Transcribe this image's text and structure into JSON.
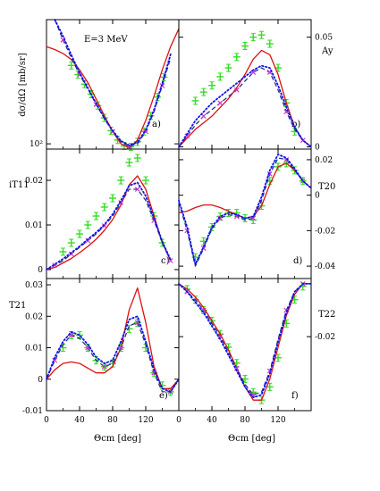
{
  "figure": {
    "energy_label": "E=3 MeV",
    "xlabel_left": "Θcm [deg]",
    "xlabel_right": "Θcm [deg]"
  },
  "colors": {
    "data": "#33dd22",
    "solid": "#dd1111",
    "dashed": "#223388",
    "dotted": "#1111ee",
    "cross": "#cc33cc"
  },
  "chart_data": [
    {
      "id": "a",
      "panel_label": "a)",
      "type": "line",
      "ylabel": "dσ/dΩ [mb/sr]",
      "yscale": "log",
      "ytick_labels": [
        {
          "value": 100,
          "text": "10²"
        }
      ],
      "xlim": [
        0,
        160
      ],
      "ylim": [
        90,
        1200
      ],
      "series": [
        {
          "role": "data",
          "x": [
            30,
            38,
            46,
            54,
            62,
            70,
            78,
            86,
            94,
            102,
            110,
            118,
            126,
            134,
            142
          ],
          "y": [
            480,
            400,
            330,
            270,
            215,
            168,
            130,
            108,
            96,
            94,
            104,
            128,
            175,
            255,
            380
          ]
        },
        {
          "role": "solid",
          "x": [
            0,
            10,
            20,
            30,
            40,
            50,
            60,
            70,
            80,
            90,
            100,
            110,
            120,
            130,
            140,
            150,
            160
          ],
          "y": [
            700,
            660,
            610,
            540,
            440,
            340,
            245,
            175,
            128,
            100,
            92,
            108,
            160,
            260,
            440,
            700,
            1000
          ]
        },
        {
          "role": "dashed",
          "x": [
            10,
            20,
            30,
            40,
            50,
            60,
            70,
            80,
            90,
            100,
            110,
            120,
            130,
            140,
            150
          ],
          "y": [
            1400,
            800,
            560,
            400,
            300,
            220,
            165,
            128,
            104,
            95,
            100,
            128,
            190,
            320,
            560
          ]
        },
        {
          "role": "dotted",
          "x": [
            10,
            20,
            30,
            40,
            50,
            60,
            70,
            80,
            90,
            100,
            110,
            120,
            130,
            140,
            150
          ],
          "y": [
            1600,
            860,
            590,
            415,
            305,
            225,
            168,
            130,
            106,
            97,
            103,
            132,
            198,
            335,
            600
          ]
        }
      ]
    },
    {
      "id": "b",
      "panel_label": "b)",
      "type": "line",
      "ylabel": "Ay",
      "ytick_labels": [
        {
          "value": 0,
          "text": "0"
        },
        {
          "value": 0.05,
          "text": "0.05"
        }
      ],
      "xlim": [
        0,
        160
      ],
      "ylim": [
        -0.001,
        0.058
      ],
      "series": [
        {
          "role": "data",
          "x": [
            20,
            30,
            40,
            50,
            60,
            70,
            80,
            90,
            100,
            110,
            120,
            130,
            140
          ],
          "y": [
            0.021,
            0.025,
            0.028,
            0.032,
            0.036,
            0.041,
            0.046,
            0.05,
            0.051,
            0.047,
            0.036,
            0.02,
            0.007
          ]
        },
        {
          "role": "solid",
          "x": [
            0,
            10,
            20,
            30,
            40,
            50,
            60,
            70,
            80,
            90,
            100,
            110,
            120,
            130,
            140,
            150,
            160
          ],
          "y": [
            0,
            0.004,
            0.008,
            0.011,
            0.014,
            0.018,
            0.022,
            0.027,
            0.033,
            0.04,
            0.044,
            0.042,
            0.033,
            0.02,
            0.009,
            0.003,
            0
          ]
        },
        {
          "role": "dashed",
          "x": [
            0,
            10,
            20,
            30,
            40,
            50,
            60,
            70,
            80,
            90,
            100,
            110,
            120,
            130,
            140,
            150,
            160
          ],
          "y": [
            0,
            0.005,
            0.01,
            0.014,
            0.017,
            0.02,
            0.023,
            0.026,
            0.03,
            0.034,
            0.036,
            0.034,
            0.026,
            0.016,
            0.008,
            0.003,
            0
          ]
        },
        {
          "role": "dotted",
          "x": [
            0,
            10,
            20,
            30,
            40,
            50,
            60,
            70,
            80,
            90,
            100,
            110,
            120,
            130,
            140,
            150,
            160
          ],
          "y": [
            0,
            0.006,
            0.012,
            0.016,
            0.02,
            0.023,
            0.026,
            0.029,
            0.032,
            0.035,
            0.037,
            0.036,
            0.028,
            0.018,
            0.009,
            0.003,
            0
          ]
        }
      ]
    },
    {
      "id": "c",
      "panel_label": "c)",
      "type": "line",
      "ylabel": "iT11",
      "ytick_labels": [
        {
          "value": 0,
          "text": "0"
        },
        {
          "value": 0.01,
          "text": "0.01"
        },
        {
          "value": 0.02,
          "text": "0.02"
        }
      ],
      "xlim": [
        0,
        160
      ],
      "ylim": [
        -0.002,
        0.027
      ],
      "series": [
        {
          "role": "data",
          "x": [
            20,
            30,
            40,
            50,
            60,
            70,
            80,
            90,
            100,
            110,
            120,
            130,
            140
          ],
          "y": [
            0.004,
            0.006,
            0.008,
            0.01,
            0.012,
            0.014,
            0.016,
            0.02,
            0.024,
            0.025,
            0.02,
            0.012,
            0.006
          ]
        },
        {
          "role": "solid",
          "x": [
            0,
            10,
            20,
            30,
            40,
            50,
            60,
            70,
            80,
            90,
            100,
            110,
            120,
            130,
            140,
            150
          ],
          "y": [
            0,
            0.0005,
            0.0015,
            0.0025,
            0.0038,
            0.0052,
            0.0068,
            0.0088,
            0.0112,
            0.0145,
            0.019,
            0.021,
            0.018,
            0.012,
            0.006,
            0.002
          ]
        },
        {
          "role": "dashed",
          "x": [
            0,
            10,
            20,
            30,
            40,
            50,
            60,
            70,
            80,
            90,
            100,
            110,
            120,
            130,
            140,
            150
          ],
          "y": [
            0,
            0.001,
            0.002,
            0.0035,
            0.005,
            0.0065,
            0.008,
            0.0098,
            0.012,
            0.015,
            0.018,
            0.018,
            0.0155,
            0.011,
            0.006,
            0.002
          ]
        },
        {
          "role": "dotted",
          "x": [
            0,
            10,
            20,
            30,
            40,
            50,
            60,
            70,
            80,
            90,
            100,
            110,
            120,
            130,
            140,
            150
          ],
          "y": [
            0,
            0.0012,
            0.0024,
            0.0038,
            0.0052,
            0.0068,
            0.0083,
            0.0101,
            0.0124,
            0.0155,
            0.0188,
            0.0195,
            0.0165,
            0.0115,
            0.0063,
            0.0022
          ]
        }
      ]
    },
    {
      "id": "d",
      "panel_label": "d)",
      "type": "line",
      "ylabel": "T20",
      "ytick_labels": [
        {
          "value": 0.02,
          "text": "0.02"
        },
        {
          "value": 0,
          "text": "0"
        },
        {
          "value": -0.02,
          "text": "-0.02"
        },
        {
          "value": -0.04,
          "text": "-0.04"
        }
      ],
      "xlim": [
        0,
        160
      ],
      "ylim": [
        -0.047,
        0.026
      ],
      "series": [
        {
          "role": "data",
          "x": [
            20,
            30,
            40,
            50,
            60,
            70,
            80,
            90,
            100,
            110,
            120,
            130,
            140,
            150
          ],
          "y": [
            -0.035,
            -0.026,
            -0.018,
            -0.012,
            -0.01,
            -0.01,
            -0.013,
            -0.014,
            -0.006,
            0.008,
            0.016,
            0.018,
            0.014,
            0.008
          ]
        },
        {
          "role": "solid",
          "x": [
            0,
            10,
            20,
            30,
            40,
            50,
            60,
            70,
            80,
            90,
            100,
            110,
            120,
            130,
            140,
            150,
            160
          ],
          "y": [
            -0.01,
            -0.009,
            -0.007,
            -0.0055,
            -0.0055,
            -0.007,
            -0.009,
            -0.011,
            -0.013,
            -0.012,
            -0.006,
            0.006,
            0.016,
            0.018,
            0.014,
            0.008,
            0.004
          ]
        },
        {
          "role": "dashed",
          "x": [
            0,
            10,
            20,
            30,
            40,
            50,
            60,
            70,
            80,
            90,
            100,
            110,
            120,
            130,
            140,
            150,
            160
          ],
          "y": [
            -0.004,
            -0.02,
            -0.04,
            -0.03,
            -0.019,
            -0.013,
            -0.011,
            -0.012,
            -0.014,
            -0.013,
            -0.003,
            0.012,
            0.021,
            0.02,
            0.014,
            0.008,
            0.004
          ]
        },
        {
          "role": "dotted",
          "x": [
            0,
            10,
            20,
            30,
            40,
            50,
            60,
            70,
            80,
            90,
            100,
            110,
            120,
            130,
            140,
            150,
            160
          ],
          "y": [
            -0.003,
            -0.018,
            -0.039,
            -0.029,
            -0.018,
            -0.012,
            -0.01,
            -0.011,
            -0.013,
            -0.012,
            -0.001,
            0.014,
            0.023,
            0.021,
            0.015,
            0.008,
            0.004
          ]
        }
      ]
    },
    {
      "id": "e",
      "panel_label": "e)",
      "type": "line",
      "ylabel": "T21",
      "ytick_labels": [
        {
          "value": 0.03,
          "text": "0.03"
        },
        {
          "value": 0.02,
          "text": "0.02"
        },
        {
          "value": 0.01,
          "text": "0.01"
        },
        {
          "value": 0,
          "text": "0"
        },
        {
          "value": -0.01,
          "text": "-0.01"
        }
      ],
      "xlim": [
        0,
        160
      ],
      "ylim": [
        -0.01,
        0.032
      ],
      "series": [
        {
          "role": "data",
          "x": [
            20,
            30,
            40,
            50,
            60,
            70,
            80,
            90,
            100,
            110,
            120,
            130,
            140,
            150
          ],
          "y": [
            0.01,
            0.014,
            0.014,
            0.01,
            0.006,
            0.004,
            0.005,
            0.01,
            0.016,
            0.018,
            0.01,
            0.002,
            -0.002,
            -0.004
          ]
        },
        {
          "role": "solid",
          "x": [
            0,
            10,
            20,
            30,
            40,
            50,
            60,
            70,
            80,
            90,
            100,
            110,
            120,
            130,
            140,
            150,
            160
          ],
          "y": [
            0,
            0.003,
            0.005,
            0.0055,
            0.005,
            0.0035,
            0.002,
            0.002,
            0.004,
            0.01,
            0.022,
            0.029,
            0.018,
            0.004,
            -0.003,
            -0.003,
            0
          ]
        },
        {
          "role": "dashed",
          "x": [
            0,
            10,
            20,
            30,
            40,
            50,
            60,
            70,
            80,
            90,
            100,
            110,
            120,
            130,
            140,
            150,
            160
          ],
          "y": [
            0,
            0.006,
            0.011,
            0.014,
            0.013,
            0.01,
            0.006,
            0.004,
            0.005,
            0.01,
            0.017,
            0.018,
            0.011,
            0.002,
            -0.004,
            -0.004,
            0
          ]
        },
        {
          "role": "dotted",
          "x": [
            0,
            10,
            20,
            30,
            40,
            50,
            60,
            70,
            80,
            90,
            100,
            110,
            120,
            130,
            140,
            150,
            160
          ],
          "y": [
            0,
            0.007,
            0.012,
            0.015,
            0.014,
            0.011,
            0.007,
            0.005,
            0.006,
            0.012,
            0.019,
            0.02,
            0.012,
            0.003,
            -0.003,
            -0.004,
            0
          ]
        }
      ]
    },
    {
      "id": "f",
      "panel_label": "f)",
      "type": "line",
      "ylabel": "T22",
      "ytick_labels": [
        {
          "value": -0.02,
          "text": "-0.02"
        }
      ],
      "xlim": [
        0,
        160
      ],
      "ylim": [
        -0.048,
        0.002
      ],
      "series": [
        {
          "role": "data",
          "x": [
            10,
            20,
            30,
            40,
            50,
            60,
            70,
            80,
            90,
            100,
            110,
            120,
            130,
            140,
            150
          ],
          "y": [
            -0.002,
            -0.006,
            -0.01,
            -0.014,
            -0.019,
            -0.024,
            -0.03,
            -0.036,
            -0.041,
            -0.044,
            -0.039,
            -0.028,
            -0.015,
            -0.006,
            -0.001
          ]
        },
        {
          "role": "solid",
          "x": [
            0,
            10,
            20,
            30,
            40,
            50,
            60,
            70,
            80,
            90,
            100,
            110,
            120,
            130,
            140,
            150,
            160
          ],
          "y": [
            0,
            -0.002,
            -0.005,
            -0.009,
            -0.014,
            -0.019,
            -0.025,
            -0.032,
            -0.039,
            -0.044,
            -0.044,
            -0.036,
            -0.024,
            -0.012,
            -0.004,
            0,
            0
          ]
        },
        {
          "role": "dashed",
          "x": [
            0,
            10,
            20,
            30,
            40,
            50,
            60,
            70,
            80,
            90,
            100,
            110,
            120,
            130,
            140,
            150,
            160
          ],
          "y": [
            0,
            -0.003,
            -0.006,
            -0.01,
            -0.015,
            -0.02,
            -0.026,
            -0.032,
            -0.038,
            -0.042,
            -0.041,
            -0.033,
            -0.021,
            -0.01,
            -0.003,
            0,
            0
          ]
        },
        {
          "role": "dotted",
          "x": [
            0,
            10,
            20,
            30,
            40,
            50,
            60,
            70,
            80,
            90,
            100,
            110,
            120,
            130,
            140,
            150,
            160
          ],
          "y": [
            0,
            -0.003,
            -0.007,
            -0.011,
            -0.016,
            -0.021,
            -0.027,
            -0.033,
            -0.039,
            -0.043,
            -0.042,
            -0.034,
            -0.022,
            -0.011,
            -0.003,
            0,
            0
          ]
        }
      ]
    }
  ],
  "x_ticks_left": [
    {
      "value": 0,
      "text": "0"
    },
    {
      "value": 40,
      "text": "40"
    },
    {
      "value": 80,
      "text": "80"
    },
    {
      "value": 120,
      "text": "120"
    }
  ],
  "x_ticks_right": [
    {
      "value": 0,
      "text": "0"
    },
    {
      "value": 40,
      "text": "40"
    },
    {
      "value": 80,
      "text": "80"
    },
    {
      "value": 120,
      "text": "120"
    }
  ]
}
